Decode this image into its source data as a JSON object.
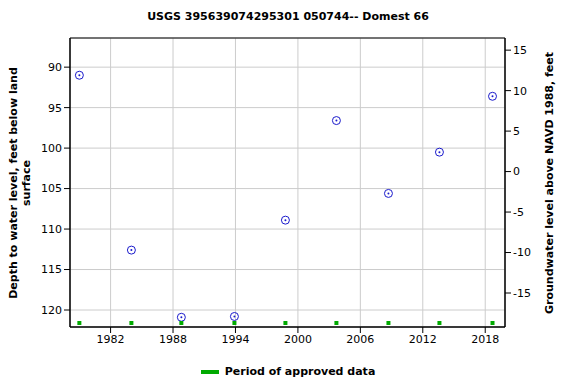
{
  "chart_data": {
    "type": "scatter",
    "title": "USGS 395639074295301 050744-- Domest 66",
    "y_label": "Depth to water level, feet below land surface",
    "y2_label": "Groundwater level above NAVD 1988, feet",
    "xlim": [
      1978.1,
      2019.9
    ],
    "xticks": [
      1982,
      1988,
      1994,
      2000,
      2006,
      2012,
      2018
    ],
    "ylim": [
      122.1,
      86.4
    ],
    "yticks": [
      90,
      95,
      100,
      105,
      110,
      115,
      120
    ],
    "y2lim": [
      -19.2,
      16.5
    ],
    "y2ticks": [
      15,
      10,
      5,
      0,
      -5,
      -10,
      -15
    ],
    "grid": true,
    "legend": "bottom",
    "series": [
      {
        "name": "Depth to water level",
        "color": "#1a1acc",
        "marker": "circle",
        "x": [
          1979.0,
          1984.0,
          1988.8,
          1993.9,
          1998.8,
          2003.7,
          2008.7,
          2013.6,
          2018.7
        ],
        "values": [
          91.0,
          112.6,
          120.9,
          120.8,
          108.9,
          96.6,
          105.6,
          100.5,
          93.6
        ]
      },
      {
        "name": "Period of approved data",
        "color": "#00aa00",
        "marker": "square",
        "line_style": "solid",
        "x": [
          1979.0,
          1984.0,
          1988.8,
          1993.9,
          1998.8,
          2003.7,
          2008.7,
          2013.6,
          2018.7
        ]
      }
    ]
  }
}
